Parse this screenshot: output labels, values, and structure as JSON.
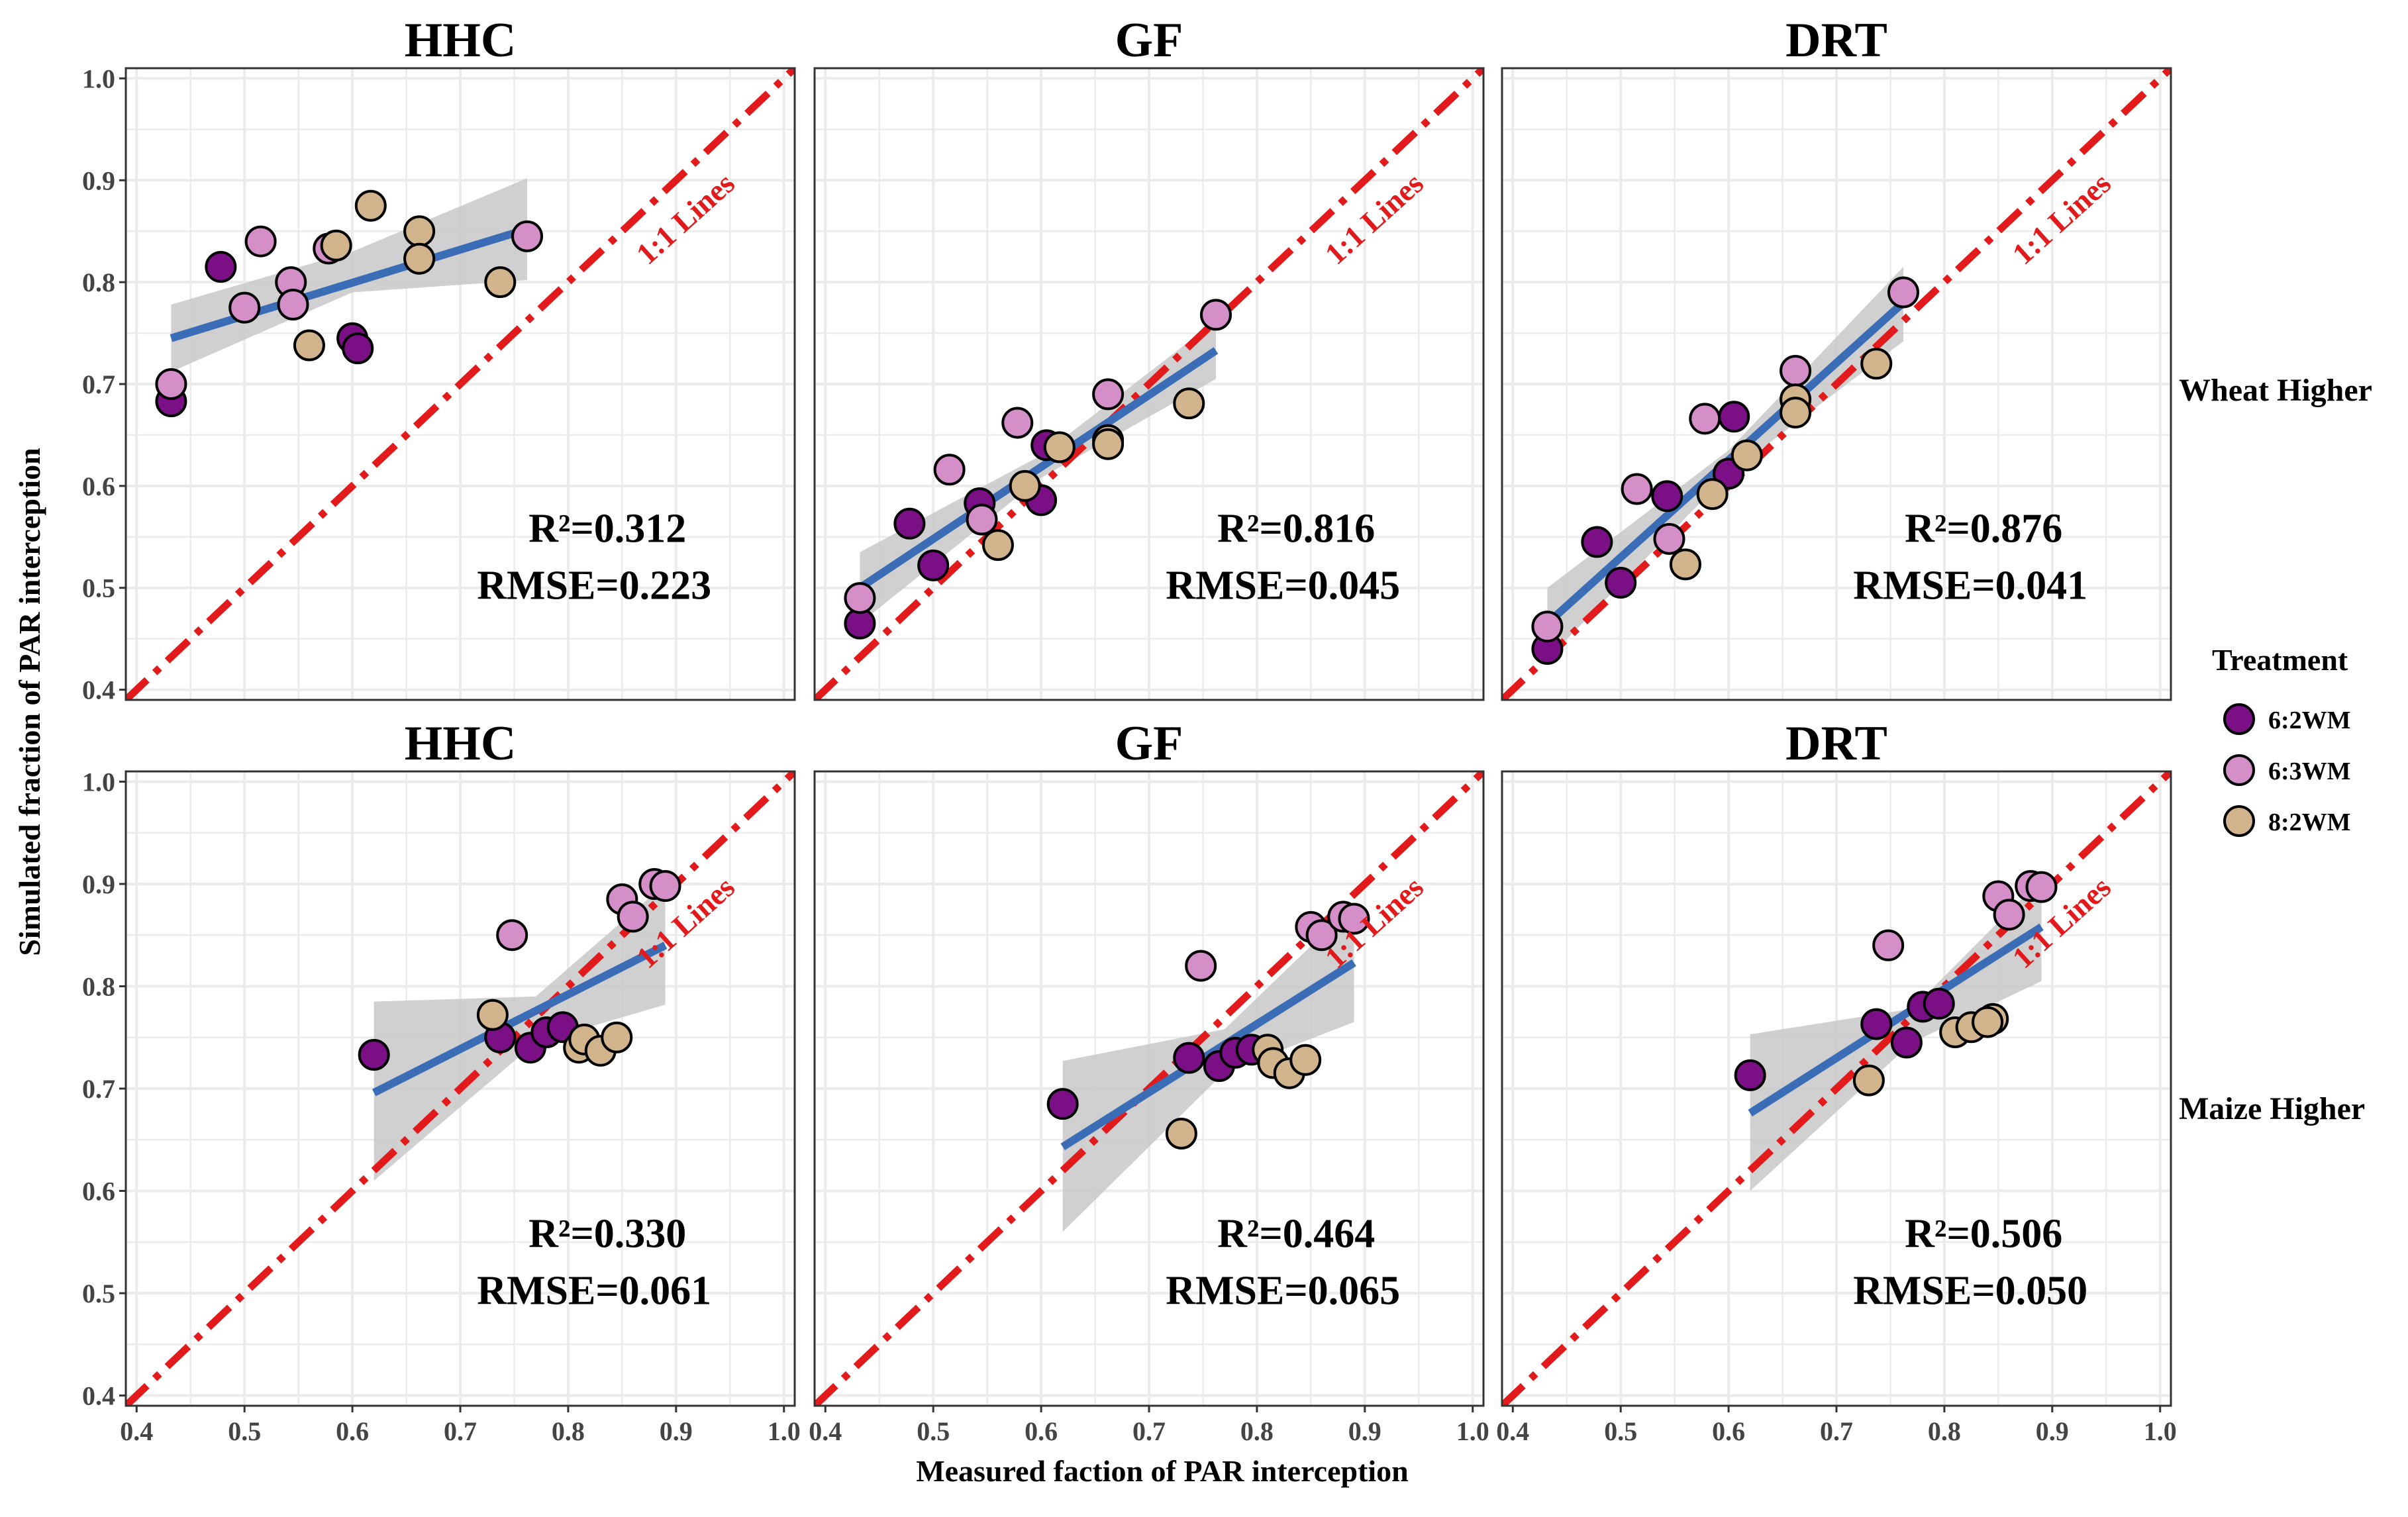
{
  "figure": {
    "xlabel": "Measured faction of PAR interception",
    "ylabel": "Simulated fraction of PAR interception",
    "row_strips": [
      "Wheat Higher",
      "Maize Higher"
    ],
    "legend": {
      "title": "Treatment",
      "entries": [
        {
          "label": "6:2WM",
          "color": "#7B0F85"
        },
        {
          "label": "6:3WM",
          "color": "#D48FC8"
        },
        {
          "label": "8:2WM",
          "color": "#D2B48C"
        }
      ]
    },
    "one_to_one_label": "1:1 Lines",
    "colors": {
      "fit_line": "#3A6DB5",
      "one_to_one": "#E31A1C",
      "ci_band": "#C8C8C8",
      "grid": "#EBEBEB"
    }
  },
  "chart_data": [
    {
      "type": "scatter",
      "title": "HHC",
      "row": "Wheat Higher",
      "r2_label": "R²=0.312",
      "rmse_label": "RMSE=0.223",
      "xlim": [
        0.39,
        1.01
      ],
      "ylim": [
        0.39,
        1.01
      ],
      "x_ticks": [
        0.4,
        0.5,
        0.6,
        0.7,
        0.8,
        0.9,
        1.0
      ],
      "y_ticks": [
        0.4,
        0.5,
        0.6,
        0.7,
        0.8,
        0.9,
        1.0
      ],
      "fit": {
        "x": [
          0.432,
          0.762
        ],
        "y": [
          0.745,
          0.852
        ],
        "band": [
          [
            0.432,
            0.712,
            0.778
          ],
          [
            0.6,
            0.79,
            0.83
          ],
          [
            0.762,
            0.802,
            0.902
          ]
        ]
      },
      "series": [
        {
          "name": "6:2WM",
          "points": [
            [
              0.432,
              0.683
            ],
            [
              0.478,
              0.815
            ],
            [
              0.6,
              0.745
            ],
            [
              0.605,
              0.735
            ]
          ]
        },
        {
          "name": "6:3WM",
          "points": [
            [
              0.432,
              0.7
            ],
            [
              0.5,
              0.775
            ],
            [
              0.515,
              0.84
            ],
            [
              0.543,
              0.8
            ],
            [
              0.545,
              0.778
            ],
            [
              0.578,
              0.833
            ],
            [
              0.762,
              0.845
            ]
          ]
        },
        {
          "name": "8:2WM",
          "points": [
            [
              0.56,
              0.738
            ],
            [
              0.585,
              0.836
            ],
            [
              0.617,
              0.875
            ],
            [
              0.662,
              0.85
            ],
            [
              0.662,
              0.823
            ],
            [
              0.737,
              0.8
            ]
          ]
        }
      ]
    },
    {
      "type": "scatter",
      "title": "GF",
      "row": "Wheat Higher",
      "r2_label": "R²=0.816",
      "rmse_label": "RMSE=0.045",
      "xlim": [
        0.39,
        1.01
      ],
      "ylim": [
        0.39,
        1.01
      ],
      "x_ticks": [
        0.4,
        0.5,
        0.6,
        0.7,
        0.8,
        0.9,
        1.0
      ],
      "y_ticks": [
        0.4,
        0.5,
        0.6,
        0.7,
        0.8,
        0.9,
        1.0
      ],
      "fit": {
        "x": [
          0.432,
          0.762
        ],
        "y": [
          0.5,
          0.733
        ],
        "band": [
          [
            0.432,
            0.465,
            0.535
          ],
          [
            0.6,
            0.608,
            0.63
          ],
          [
            0.762,
            0.705,
            0.762
          ]
        ]
      },
      "series": [
        {
          "name": "6:2WM",
          "points": [
            [
              0.432,
              0.465
            ],
            [
              0.478,
              0.563
            ],
            [
              0.5,
              0.522
            ],
            [
              0.543,
              0.583
            ],
            [
              0.6,
              0.586
            ],
            [
              0.605,
              0.64
            ]
          ]
        },
        {
          "name": "6:3WM",
          "points": [
            [
              0.432,
              0.49
            ],
            [
              0.515,
              0.616
            ],
            [
              0.545,
              0.567
            ],
            [
              0.578,
              0.662
            ],
            [
              0.662,
              0.69
            ],
            [
              0.762,
              0.768
            ]
          ]
        },
        {
          "name": "8:2WM",
          "points": [
            [
              0.56,
              0.542
            ],
            [
              0.585,
              0.6
            ],
            [
              0.617,
              0.638
            ],
            [
              0.662,
              0.645
            ],
            [
              0.662,
              0.641
            ],
            [
              0.737,
              0.681
            ]
          ]
        }
      ]
    },
    {
      "type": "scatter",
      "title": "DRT",
      "row": "Wheat Higher",
      "r2_label": "R²=0.876",
      "rmse_label": "RMSE=0.041",
      "xlim": [
        0.39,
        1.01
      ],
      "ylim": [
        0.39,
        1.01
      ],
      "x_ticks": [
        0.4,
        0.5,
        0.6,
        0.7,
        0.8,
        0.9,
        1.0
      ],
      "y_ticks": [
        0.4,
        0.5,
        0.6,
        0.7,
        0.8,
        0.9,
        1.0
      ],
      "fit": {
        "x": [
          0.432,
          0.762
        ],
        "y": [
          0.465,
          0.78
        ],
        "band": [
          [
            0.432,
            0.43,
            0.5
          ],
          [
            0.6,
            0.612,
            0.635
          ],
          [
            0.762,
            0.742,
            0.815
          ]
        ]
      },
      "series": [
        {
          "name": "6:2WM",
          "points": [
            [
              0.432,
              0.44
            ],
            [
              0.478,
              0.545
            ],
            [
              0.5,
              0.505
            ],
            [
              0.543,
              0.59
            ],
            [
              0.6,
              0.612
            ],
            [
              0.605,
              0.668
            ]
          ]
        },
        {
          "name": "6:3WM",
          "points": [
            [
              0.432,
              0.462
            ],
            [
              0.515,
              0.597
            ],
            [
              0.545,
              0.548
            ],
            [
              0.578,
              0.666
            ],
            [
              0.662,
              0.713
            ],
            [
              0.762,
              0.79
            ]
          ]
        },
        {
          "name": "8:2WM",
          "points": [
            [
              0.56,
              0.523
            ],
            [
              0.585,
              0.592
            ],
            [
              0.617,
              0.63
            ],
            [
              0.662,
              0.685
            ],
            [
              0.662,
              0.672
            ],
            [
              0.737,
              0.72
            ]
          ]
        }
      ]
    },
    {
      "type": "scatter",
      "title": "HHC",
      "row": "Maize Higher",
      "r2_label": "R²=0.330",
      "rmse_label": "RMSE=0.061",
      "xlim": [
        0.39,
        1.01
      ],
      "ylim": [
        0.39,
        1.01
      ],
      "x_ticks": [
        0.4,
        0.5,
        0.6,
        0.7,
        0.8,
        0.9,
        1.0
      ],
      "y_ticks": [
        0.4,
        0.5,
        0.6,
        0.7,
        0.8,
        0.9,
        1.0
      ],
      "fit": {
        "x": [
          0.62,
          0.89
        ],
        "y": [
          0.696,
          0.84
        ],
        "band": [
          [
            0.62,
            0.61,
            0.785
          ],
          [
            0.77,
            0.745,
            0.79
          ],
          [
            0.89,
            0.782,
            0.9
          ]
        ]
      },
      "series": [
        {
          "name": "6:2WM",
          "points": [
            [
              0.62,
              0.733
            ],
            [
              0.737,
              0.75
            ],
            [
              0.765,
              0.74
            ],
            [
              0.78,
              0.755
            ],
            [
              0.795,
              0.76
            ]
          ]
        },
        {
          "name": "6:3WM",
          "points": [
            [
              0.748,
              0.85
            ],
            [
              0.85,
              0.885
            ],
            [
              0.86,
              0.868
            ],
            [
              0.88,
              0.9
            ],
            [
              0.89,
              0.898
            ]
          ]
        },
        {
          "name": "8:2WM",
          "points": [
            [
              0.73,
              0.772
            ],
            [
              0.81,
              0.74
            ],
            [
              0.815,
              0.748
            ],
            [
              0.83,
              0.737
            ],
            [
              0.845,
              0.75
            ]
          ]
        }
      ]
    },
    {
      "type": "scatter",
      "title": "GF",
      "row": "Maize Higher",
      "r2_label": "R²=0.464",
      "rmse_label": "RMSE=0.065",
      "xlim": [
        0.39,
        1.01
      ],
      "ylim": [
        0.39,
        1.01
      ],
      "x_ticks": [
        0.4,
        0.5,
        0.6,
        0.7,
        0.8,
        0.9,
        1.0
      ],
      "y_ticks": [
        0.4,
        0.5,
        0.6,
        0.7,
        0.8,
        0.9,
        1.0
      ],
      "fit": {
        "x": [
          0.62,
          0.89
        ],
        "y": [
          0.643,
          0.823
        ],
        "band": [
          [
            0.62,
            0.56,
            0.727
          ],
          [
            0.77,
            0.716,
            0.758
          ],
          [
            0.89,
            0.765,
            0.88
          ]
        ]
      },
      "series": [
        {
          "name": "6:2WM",
          "points": [
            [
              0.62,
              0.685
            ],
            [
              0.737,
              0.73
            ],
            [
              0.765,
              0.722
            ],
            [
              0.78,
              0.735
            ],
            [
              0.795,
              0.738
            ]
          ]
        },
        {
          "name": "6:3WM",
          "points": [
            [
              0.748,
              0.82
            ],
            [
              0.85,
              0.858
            ],
            [
              0.86,
              0.85
            ],
            [
              0.88,
              0.868
            ],
            [
              0.89,
              0.866
            ]
          ]
        },
        {
          "name": "8:2WM",
          "points": [
            [
              0.73,
              0.656
            ],
            [
              0.81,
              0.738
            ],
            [
              0.815,
              0.725
            ],
            [
              0.83,
              0.715
            ],
            [
              0.845,
              0.728
            ]
          ]
        }
      ]
    },
    {
      "type": "scatter",
      "title": "DRT",
      "row": "Maize Higher",
      "r2_label": "R²=0.506",
      "rmse_label": "RMSE=0.050",
      "xlim": [
        0.39,
        1.01
      ],
      "ylim": [
        0.39,
        1.01
      ],
      "x_ticks": [
        0.4,
        0.5,
        0.6,
        0.7,
        0.8,
        0.9,
        1.0
      ],
      "y_ticks": [
        0.4,
        0.5,
        0.6,
        0.7,
        0.8,
        0.9,
        1.0
      ],
      "fit": {
        "x": [
          0.62,
          0.89
        ],
        "y": [
          0.676,
          0.858
        ],
        "band": [
          [
            0.62,
            0.6,
            0.753
          ],
          [
            0.77,
            0.745,
            0.778
          ],
          [
            0.89,
            0.805,
            0.905
          ]
        ]
      },
      "series": [
        {
          "name": "6:2WM",
          "points": [
            [
              0.62,
              0.713
            ],
            [
              0.737,
              0.763
            ],
            [
              0.765,
              0.745
            ],
            [
              0.78,
              0.78
            ],
            [
              0.795,
              0.783
            ]
          ]
        },
        {
          "name": "6:3WM",
          "points": [
            [
              0.748,
              0.84
            ],
            [
              0.85,
              0.888
            ],
            [
              0.86,
              0.87
            ],
            [
              0.88,
              0.898
            ],
            [
              0.89,
              0.897
            ]
          ]
        },
        {
          "name": "8:2WM",
          "points": [
            [
              0.73,
              0.708
            ],
            [
              0.81,
              0.755
            ],
            [
              0.825,
              0.76
            ],
            [
              0.845,
              0.768
            ],
            [
              0.84,
              0.765
            ]
          ]
        }
      ]
    }
  ]
}
